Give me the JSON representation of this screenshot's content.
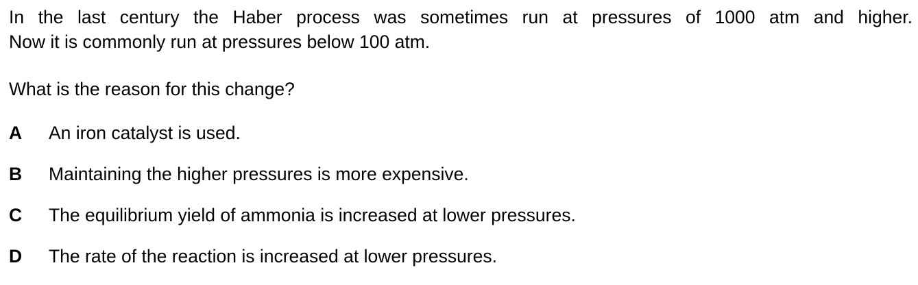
{
  "intro": {
    "line1": "In the last century the Haber process was sometimes run at pressures of 1000 atm and higher.",
    "line2": "Now it is commonly run at pressures below 100 atm."
  },
  "question": "What is the reason for this change?",
  "options": [
    {
      "letter": "A",
      "text": "An iron catalyst is used."
    },
    {
      "letter": "B",
      "text": "Maintaining the higher pressures is more expensive."
    },
    {
      "letter": "C",
      "text": "The equilibrium yield of ammonia is increased at lower pressures."
    },
    {
      "letter": "D",
      "text": "The rate of the reaction is increased at lower pressures."
    }
  ]
}
